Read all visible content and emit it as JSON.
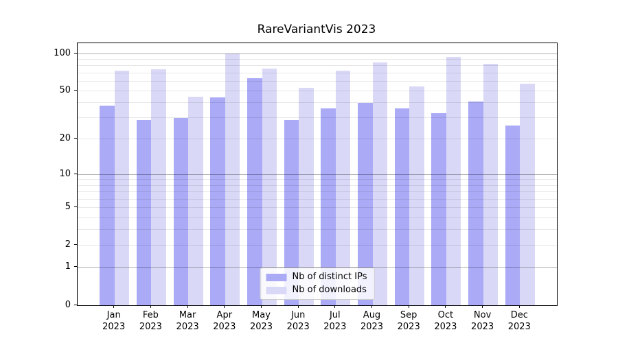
{
  "title": "RareVariantVis 2023",
  "chart_data": {
    "type": "bar",
    "title": "RareVariantVis 2023",
    "categories": [
      "Jan",
      "Feb",
      "Mar",
      "Apr",
      "May",
      "Jun",
      "Jul",
      "Aug",
      "Sep",
      "Oct",
      "Nov",
      "Dec"
    ],
    "category_year": "2023",
    "series": [
      {
        "name": "Nb of distinct IPs",
        "color": "#aaaaf6",
        "values": [
          38,
          29,
          30,
          44,
          63,
          29,
          36,
          40,
          36,
          33,
          41,
          26
        ]
      },
      {
        "name": "Nb of downloads",
        "color": "#d9d9f7",
        "values": [
          73,
          75,
          45,
          100,
          76,
          53,
          73,
          85,
          54,
          94,
          83,
          57
        ]
      }
    ],
    "xlabel": "",
    "ylabel": "",
    "y_scale": "log1p",
    "ylim": [
      0,
      121
    ],
    "y_tick_values": [
      0,
      1,
      2,
      5,
      10,
      20,
      50,
      100
    ],
    "y_major_gridlines": [
      1,
      10,
      100
    ],
    "y_minor_gridlines": [
      2,
      3,
      4,
      5,
      6,
      7,
      8,
      9,
      20,
      30,
      40,
      50,
      60,
      70,
      80,
      90
    ],
    "grid": true,
    "legend_position": "lower center",
    "colors": {
      "grid_major": "#b0b0b0",
      "grid_minor": "#e8e8e8",
      "axis": "#000000",
      "background": "#ffffff"
    }
  }
}
